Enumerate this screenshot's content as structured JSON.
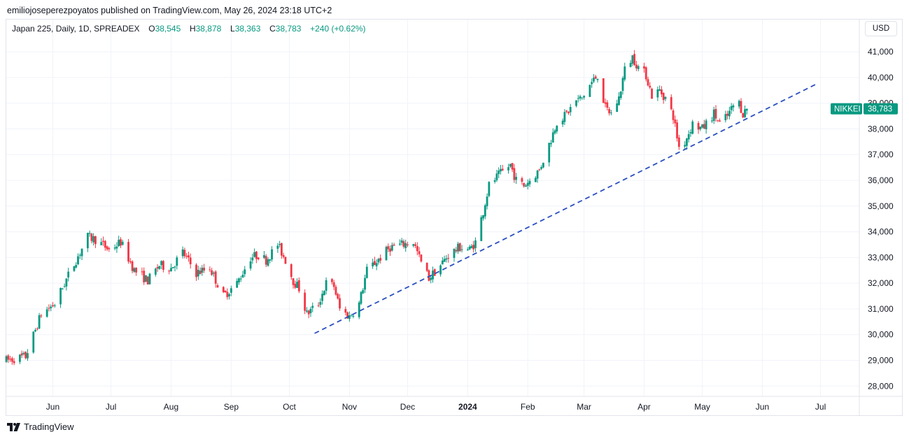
{
  "header": {
    "published": "emiliojoseperezpoyatos published on TradingView.com, May 26, 2024 23:18 UTC+2"
  },
  "legend": {
    "symbol": "Japan 225, Daily, 1D, SPREADEX",
    "o_label": "O",
    "o_value": "38,545",
    "h_label": "H",
    "h_value": "38,878",
    "l_label": "L",
    "l_value": "38,363",
    "c_label": "C",
    "c_value": "38,783",
    "change": "+240 (+0.62%)"
  },
  "currency_button": "USD",
  "price_tag": {
    "name": "NIKKEI",
    "value": "38,783",
    "color": "#089981"
  },
  "footer": {
    "brand": "TradingView"
  },
  "colors": {
    "up": "#089981",
    "down": "#f23645",
    "trendline": "#2a4fbf",
    "grid": "#f0f3fa"
  },
  "chart_data": {
    "type": "candlestick",
    "y_axis": {
      "min": 27600,
      "max": 41600,
      "position": "right",
      "ticks": [
        28000,
        29000,
        30000,
        31000,
        32000,
        33000,
        34000,
        35000,
        36000,
        37000,
        38000,
        39000,
        40000,
        41000
      ],
      "tick_labels": [
        "28,000",
        "29,000",
        "30,000",
        "31,000",
        "32,000",
        "33,000",
        "34,000",
        "35,000",
        "36,000",
        "37,000",
        "38,000",
        "39,000",
        "40,000",
        "41,000"
      ]
    },
    "x_axis": {
      "start": "2023-05-08",
      "end": "2024-07-21",
      "ticks": [
        {
          "date": "2023-06-01",
          "label": "Jun",
          "bold": false
        },
        {
          "date": "2023-07-01",
          "label": "Jul",
          "bold": false
        },
        {
          "date": "2023-08-01",
          "label": "Aug",
          "bold": false
        },
        {
          "date": "2023-09-01",
          "label": "Sep",
          "bold": false
        },
        {
          "date": "2023-10-01",
          "label": "Oct",
          "bold": false
        },
        {
          "date": "2023-11-01",
          "label": "Nov",
          "bold": false
        },
        {
          "date": "2023-12-01",
          "label": "Dec",
          "bold": false
        },
        {
          "date": "2024-01-01",
          "label": "2024",
          "bold": true
        },
        {
          "date": "2024-02-01",
          "label": "Feb",
          "bold": false
        },
        {
          "date": "2024-03-01",
          "label": "Mar",
          "bold": false
        },
        {
          "date": "2024-04-01",
          "label": "Apr",
          "bold": false
        },
        {
          "date": "2024-05-01",
          "label": "May",
          "bold": false
        },
        {
          "date": "2024-06-01",
          "label": "Jun",
          "bold": false
        },
        {
          "date": "2024-07-01",
          "label": "Jul",
          "bold": false
        }
      ]
    },
    "trendline": {
      "style": "dashed",
      "points": [
        {
          "date": "2023-10-14",
          "value": 30050
        },
        {
          "date": "2024-06-29",
          "value": 39750
        }
      ]
    },
    "price_path": [
      {
        "date": "2023-05-08",
        "value": 29000
      },
      {
        "date": "2023-05-18",
        "value": 29150
      },
      {
        "date": "2023-05-26",
        "value": 30800
      },
      {
        "date": "2023-06-02",
        "value": 31200
      },
      {
        "date": "2023-06-09",
        "value": 32300
      },
      {
        "date": "2023-06-19",
        "value": 33800
      },
      {
        "date": "2023-06-23",
        "value": 33700
      },
      {
        "date": "2023-06-30",
        "value": 33300
      },
      {
        "date": "2023-07-06",
        "value": 33600
      },
      {
        "date": "2023-07-13",
        "value": 32500
      },
      {
        "date": "2023-07-20",
        "value": 32100
      },
      {
        "date": "2023-07-26",
        "value": 32700
      },
      {
        "date": "2023-08-01",
        "value": 32600
      },
      {
        "date": "2023-08-07",
        "value": 33200
      },
      {
        "date": "2023-08-14",
        "value": 32400
      },
      {
        "date": "2023-08-21",
        "value": 32600
      },
      {
        "date": "2023-08-28",
        "value": 31500
      },
      {
        "date": "2023-09-04",
        "value": 32000
      },
      {
        "date": "2023-09-11",
        "value": 33000
      },
      {
        "date": "2023-09-15",
        "value": 33100
      },
      {
        "date": "2023-09-19",
        "value": 32900
      },
      {
        "date": "2023-09-25",
        "value": 33500
      },
      {
        "date": "2023-09-29",
        "value": 32900
      },
      {
        "date": "2023-10-03",
        "value": 32100
      },
      {
        "date": "2023-10-06",
        "value": 31800
      },
      {
        "date": "2023-10-10",
        "value": 30800
      },
      {
        "date": "2023-10-16",
        "value": 31200
      },
      {
        "date": "2023-10-20",
        "value": 32000
      },
      {
        "date": "2023-10-24",
        "value": 31900
      },
      {
        "date": "2023-10-27",
        "value": 31000
      },
      {
        "date": "2023-11-01",
        "value": 30700
      },
      {
        "date": "2023-11-06",
        "value": 31200
      },
      {
        "date": "2023-11-10",
        "value": 32500
      },
      {
        "date": "2023-11-17",
        "value": 33000
      },
      {
        "date": "2023-11-22",
        "value": 33400
      },
      {
        "date": "2023-11-28",
        "value": 33500
      },
      {
        "date": "2023-12-04",
        "value": 33600
      },
      {
        "date": "2023-12-08",
        "value": 32800
      },
      {
        "date": "2023-12-12",
        "value": 32200
      },
      {
        "date": "2023-12-18",
        "value": 32700
      },
      {
        "date": "2023-12-22",
        "value": 33100
      },
      {
        "date": "2023-12-28",
        "value": 33400
      },
      {
        "date": "2024-01-02",
        "value": 33300
      },
      {
        "date": "2024-01-05",
        "value": 33600
      },
      {
        "date": "2024-01-09",
        "value": 34800
      },
      {
        "date": "2024-01-12",
        "value": 35800
      },
      {
        "date": "2024-01-17",
        "value": 36200
      },
      {
        "date": "2024-01-23",
        "value": 36600
      },
      {
        "date": "2024-01-26",
        "value": 36000
      },
      {
        "date": "2024-01-30",
        "value": 35800
      },
      {
        "date": "2024-02-02",
        "value": 36000
      },
      {
        "date": "2024-02-07",
        "value": 36400
      },
      {
        "date": "2024-02-13",
        "value": 37600
      },
      {
        "date": "2024-02-16",
        "value": 38300
      },
      {
        "date": "2024-02-20",
        "value": 38500
      },
      {
        "date": "2024-02-26",
        "value": 39100
      },
      {
        "date": "2024-02-29",
        "value": 39200
      },
      {
        "date": "2024-03-04",
        "value": 39700
      },
      {
        "date": "2024-03-08",
        "value": 40100
      },
      {
        "date": "2024-03-12",
        "value": 38800
      },
      {
        "date": "2024-03-15",
        "value": 38600
      },
      {
        "date": "2024-03-19",
        "value": 39200
      },
      {
        "date": "2024-03-22",
        "value": 40300
      },
      {
        "date": "2024-03-26",
        "value": 40800
      },
      {
        "date": "2024-03-29",
        "value": 40400
      },
      {
        "date": "2024-04-02",
        "value": 40100
      },
      {
        "date": "2024-04-05",
        "value": 39300
      },
      {
        "date": "2024-04-09",
        "value": 39500
      },
      {
        "date": "2024-04-12",
        "value": 39200
      },
      {
        "date": "2024-04-16",
        "value": 38500
      },
      {
        "date": "2024-04-19",
        "value": 37300
      },
      {
        "date": "2024-04-22",
        "value": 37500
      },
      {
        "date": "2024-04-26",
        "value": 38200
      },
      {
        "date": "2024-05-01",
        "value": 38000
      },
      {
        "date": "2024-05-07",
        "value": 38600
      },
      {
        "date": "2024-05-10",
        "value": 38200
      },
      {
        "date": "2024-05-14",
        "value": 38500
      },
      {
        "date": "2024-05-17",
        "value": 38900
      },
      {
        "date": "2024-05-20",
        "value": 39000
      },
      {
        "date": "2024-05-22",
        "value": 38600
      },
      {
        "date": "2024-05-24",
        "value": 38783
      }
    ]
  }
}
